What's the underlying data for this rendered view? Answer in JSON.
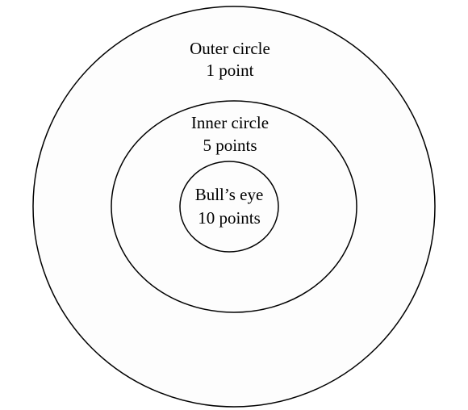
{
  "rings": [
    {
      "name": "Outer circle",
      "points": "1 point"
    },
    {
      "name": "Inner circle",
      "points": "5 points"
    },
    {
      "name": "Bull’s eye",
      "points": "10 points"
    }
  ],
  "colors": {
    "stroke": "#000000",
    "fill": "#fdfdfd",
    "background": "#ffffff"
  }
}
